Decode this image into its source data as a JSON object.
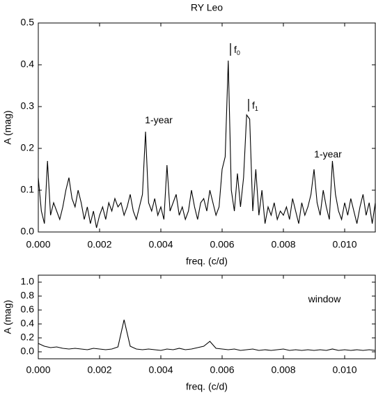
{
  "chart_data": [
    {
      "type": "line",
      "title": "RY Leo",
      "xlabel": "freq. (c/d)",
      "ylabel": "A (mag)",
      "color": "#000000",
      "annotations": [
        {
          "text": "1-year"
        },
        {
          "text": "f",
          "subscript": "0"
        },
        {
          "text": "f",
          "subscript": "1"
        },
        {
          "text": "1-year"
        }
      ],
      "xlim": [
        0,
        0.011
      ],
      "ylim": [
        0,
        0.5
      ],
      "xticks": [
        {
          "value": 0,
          "label": "0.000"
        },
        {
          "value": 0.002,
          "label": "0.002"
        },
        {
          "value": 0.004,
          "label": "0.004"
        },
        {
          "value": 0.006,
          "label": "0.006"
        },
        {
          "value": 0.008,
          "label": "0.008"
        },
        {
          "value": 0.01,
          "label": "0.010"
        }
      ],
      "yticks": [
        {
          "value": 0,
          "label": "0.0"
        },
        {
          "value": 0.1,
          "label": "0.1"
        },
        {
          "value": 0.2,
          "label": "0.2"
        },
        {
          "value": 0.3,
          "label": "0.3"
        },
        {
          "value": 0.4,
          "label": "0.4"
        },
        {
          "value": 0.5,
          "label": "0.5"
        }
      ],
      "x": [
        0,
        0.0001,
        0.0002,
        0.0003,
        0.0004,
        0.0005,
        0.0006,
        0.0007,
        0.0008,
        0.0009,
        0.001,
        0.0011,
        0.0012,
        0.0013,
        0.0014,
        0.0015,
        0.0016,
        0.0017,
        0.0018,
        0.0019,
        0.002,
        0.0021,
        0.0022,
        0.0023,
        0.0024,
        0.0025,
        0.0026,
        0.0027,
        0.0028,
        0.0029,
        0.003,
        0.0031,
        0.0032,
        0.0033,
        0.0034,
        0.0035,
        0.0036,
        0.0037,
        0.0038,
        0.0039,
        0.004,
        0.0041,
        0.0042,
        0.0043,
        0.0044,
        0.0045,
        0.0046,
        0.0047,
        0.0048,
        0.0049,
        0.005,
        0.0051,
        0.0052,
        0.0053,
        0.0054,
        0.0055,
        0.0056,
        0.0057,
        0.0058,
        0.0059,
        0.006,
        0.0061,
        0.0062,
        0.0063,
        0.0064,
        0.0065,
        0.0066,
        0.0067,
        0.0068,
        0.0069,
        0.007,
        0.0071,
        0.0072,
        0.0073,
        0.0074,
        0.0075,
        0.0076,
        0.0077,
        0.0078,
        0.0079,
        0.008,
        0.0081,
        0.0082,
        0.0083,
        0.0084,
        0.0085,
        0.0086,
        0.0087,
        0.0088,
        0.0089,
        0.009,
        0.0091,
        0.0092,
        0.0093,
        0.0094,
        0.0095,
        0.0096,
        0.0097,
        0.0098,
        0.0099,
        0.01,
        0.0101,
        0.0102,
        0.0103,
        0.0104,
        0.0105,
        0.0106,
        0.0107,
        0.0108,
        0.0109,
        0.011
      ],
      "values": [
        0.13,
        0.05,
        0.02,
        0.17,
        0.04,
        0.07,
        0.05,
        0.03,
        0.06,
        0.1,
        0.13,
        0.08,
        0.06,
        0.1,
        0.07,
        0.03,
        0.06,
        0.02,
        0.05,
        0.01,
        0.04,
        0.06,
        0.03,
        0.07,
        0.05,
        0.08,
        0.06,
        0.07,
        0.04,
        0.06,
        0.09,
        0.05,
        0.03,
        0.06,
        0.09,
        0.24,
        0.07,
        0.05,
        0.08,
        0.04,
        0.06,
        0.03,
        0.16,
        0.05,
        0.07,
        0.09,
        0.04,
        0.06,
        0.03,
        0.05,
        0.1,
        0.06,
        0.03,
        0.07,
        0.08,
        0.05,
        0.1,
        0.07,
        0.04,
        0.06,
        0.15,
        0.18,
        0.41,
        0.1,
        0.05,
        0.14,
        0.06,
        0.13,
        0.28,
        0.27,
        0.05,
        0.15,
        0.04,
        0.1,
        0.02,
        0.06,
        0.04,
        0.07,
        0.03,
        0.05,
        0.04,
        0.06,
        0.03,
        0.08,
        0.05,
        0.02,
        0.07,
        0.04,
        0.06,
        0.09,
        0.15,
        0.07,
        0.04,
        0.1,
        0.06,
        0.03,
        0.17,
        0.09,
        0.05,
        0.03,
        0.07,
        0.04,
        0.08,
        0.05,
        0.02,
        0.06,
        0.09,
        0.04,
        0.07,
        0.02,
        0.07
      ]
    },
    {
      "type": "line",
      "xlabel": "freq. (c/d)",
      "ylabel": "A (mag)",
      "color": "#000000",
      "annotations": [
        {
          "text": "window"
        }
      ],
      "xlim": [
        0,
        0.011
      ],
      "ylim": [
        -0.1,
        1.1
      ],
      "xticks": [
        {
          "value": 0,
          "label": "0.000"
        },
        {
          "value": 0.002,
          "label": "0.002"
        },
        {
          "value": 0.004,
          "label": "0.004"
        },
        {
          "value": 0.006,
          "label": "0.006"
        },
        {
          "value": 0.008,
          "label": "0.008"
        },
        {
          "value": 0.01,
          "label": "0.010"
        }
      ],
      "yticks": [
        {
          "value": 0,
          "label": "0.0"
        },
        {
          "value": 0.2,
          "label": "0.2"
        },
        {
          "value": 0.4,
          "label": "0.4"
        },
        {
          "value": 0.6,
          "label": "0.6"
        },
        {
          "value": 0.8,
          "label": "0.8"
        },
        {
          "value": 1,
          "label": "1.0"
        }
      ],
      "x": [
        0,
        0.0002,
        0.0004,
        0.0006,
        0.0008,
        0.001,
        0.0012,
        0.0014,
        0.0016,
        0.0018,
        0.002,
        0.0022,
        0.0024,
        0.0026,
        0.0028,
        0.003,
        0.0032,
        0.0034,
        0.0036,
        0.0038,
        0.004,
        0.0042,
        0.0044,
        0.0046,
        0.0048,
        0.005,
        0.0052,
        0.0054,
        0.0056,
        0.0058,
        0.006,
        0.0062,
        0.0064,
        0.0066,
        0.0068,
        0.007,
        0.0072,
        0.0074,
        0.0076,
        0.0078,
        0.008,
        0.0082,
        0.0084,
        0.0086,
        0.0088,
        0.009,
        0.0092,
        0.0094,
        0.0096,
        0.0098,
        0.01,
        0.0102,
        0.0104,
        0.0106,
        0.0108,
        0.011
      ],
      "values": [
        0.12,
        0.08,
        0.06,
        0.07,
        0.05,
        0.04,
        0.05,
        0.04,
        0.03,
        0.05,
        0.04,
        0.03,
        0.04,
        0.07,
        0.46,
        0.08,
        0.04,
        0.03,
        0.04,
        0.03,
        0.02,
        0.04,
        0.03,
        0.05,
        0.03,
        0.04,
        0.06,
        0.08,
        0.15,
        0.05,
        0.04,
        0.03,
        0.04,
        0.02,
        0.03,
        0.04,
        0.02,
        0.03,
        0.02,
        0.03,
        0.04,
        0.02,
        0.03,
        0.02,
        0.03,
        0.02,
        0.03,
        0.02,
        0.04,
        0.02,
        0.03,
        0.02,
        0.03,
        0.02,
        0.03,
        0.02
      ]
    }
  ]
}
